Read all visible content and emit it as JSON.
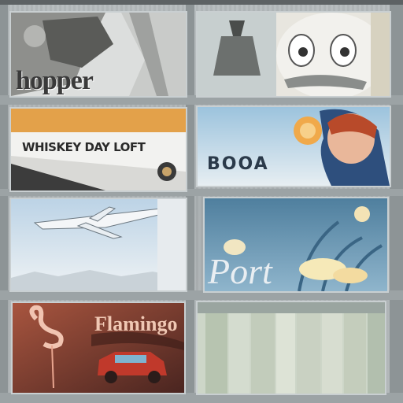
{
  "panels": [
    {
      "text": "hopper"
    },
    {
      "text": ""
    },
    {
      "text": "WHISKEY DAY LOFT"
    },
    {
      "text": "BOOA"
    },
    {
      "text": ""
    },
    {
      "text": "Port"
    },
    {
      "text": "Flamingo"
    },
    {
      "text": ""
    }
  ],
  "colors": {
    "wall": "#aab0b2",
    "frame": "#8d9496",
    "accent_orange": "#e3a14a",
    "sky_blue": "#b9d4e4",
    "deep_blue": "#5e8aa6",
    "flamingo_red": "#c0392b"
  }
}
